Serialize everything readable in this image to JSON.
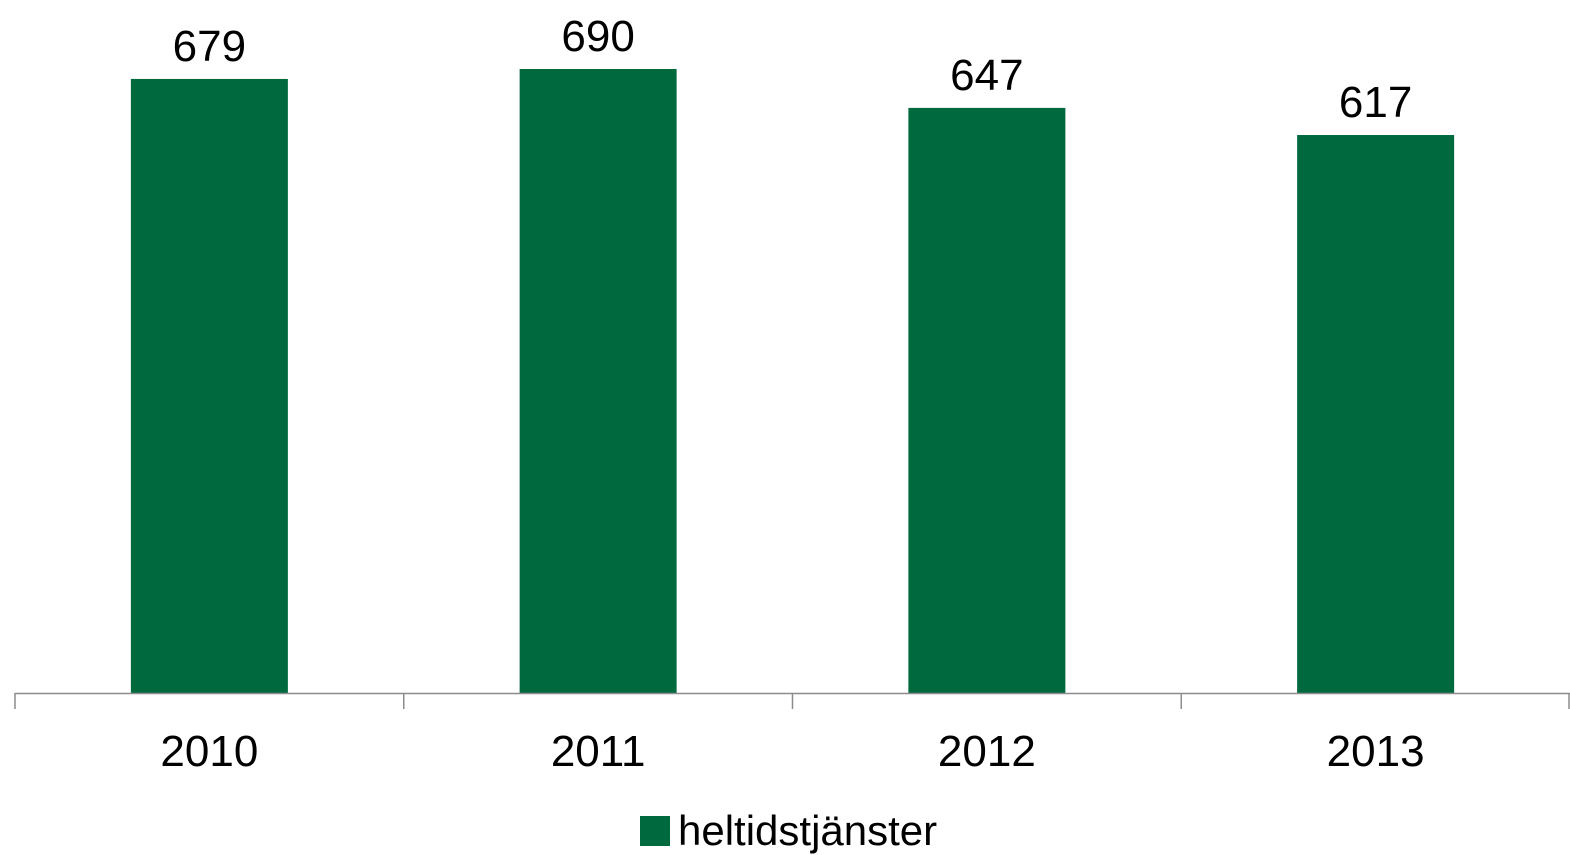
{
  "chart_data": {
    "type": "bar",
    "categories": [
      "2010",
      "2011",
      "2012",
      "2013"
    ],
    "series": [
      {
        "name": "heltidstjänster",
        "values": [
          679,
          690,
          647,
          617
        ],
        "color": "#006A3E"
      }
    ],
    "data_labels": [
      "679",
      "690",
      "647",
      "617"
    ],
    "legend": {
      "label": "heltidstjänster",
      "position": "bottom"
    },
    "ylim": [
      0,
      690
    ],
    "y_axis_visible": false,
    "grid": false
  }
}
